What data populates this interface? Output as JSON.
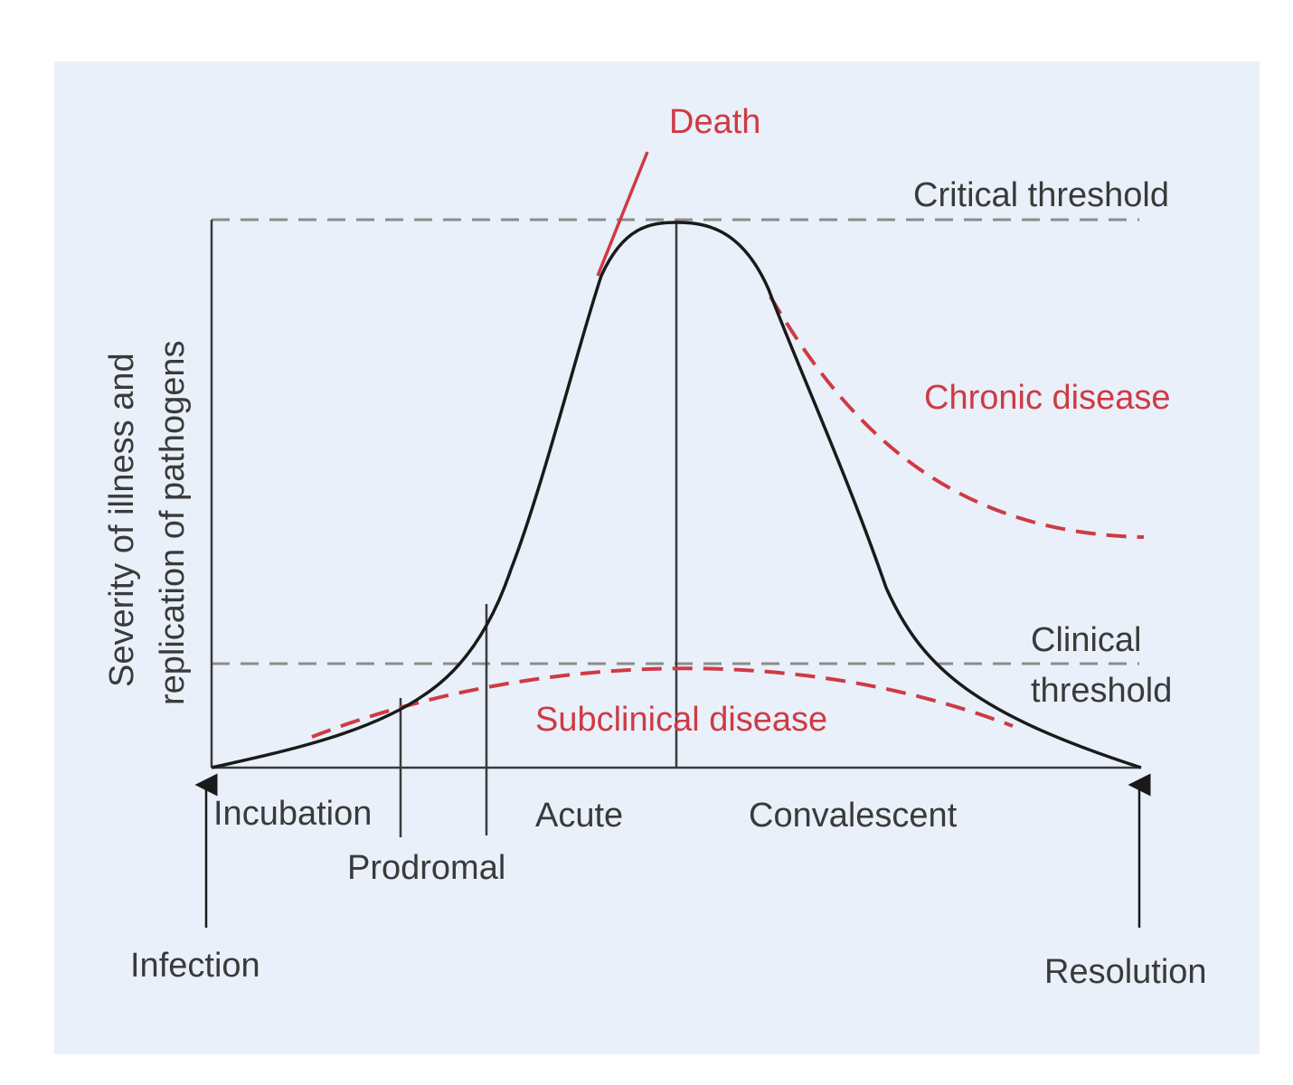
{
  "labels": {
    "death": "Death",
    "critical_threshold": "Critical threshold",
    "chronic_disease": "Chronic disease",
    "clinical_threshold_line1": "Clinical",
    "clinical_threshold_line2": "threshold",
    "subclinical_disease": "Subclinical disease",
    "y_axis_line1": "Severity of illness and",
    "y_axis_line2": "replication of pathogens",
    "phase_incubation": "Incubation",
    "phase_prodromal": "Prodromal",
    "phase_acute": "Acute",
    "phase_convalescent": "Convalescent",
    "event_infection": "Infection",
    "event_resolution": "Resolution"
  },
  "colors": {
    "panel_background": "#e9f0f9",
    "main_curve": "#1a1a1a",
    "outcome_red": "#cf3a44",
    "threshold_gray": "#8c8c8c",
    "text_dark": "#3a3a3a"
  }
}
